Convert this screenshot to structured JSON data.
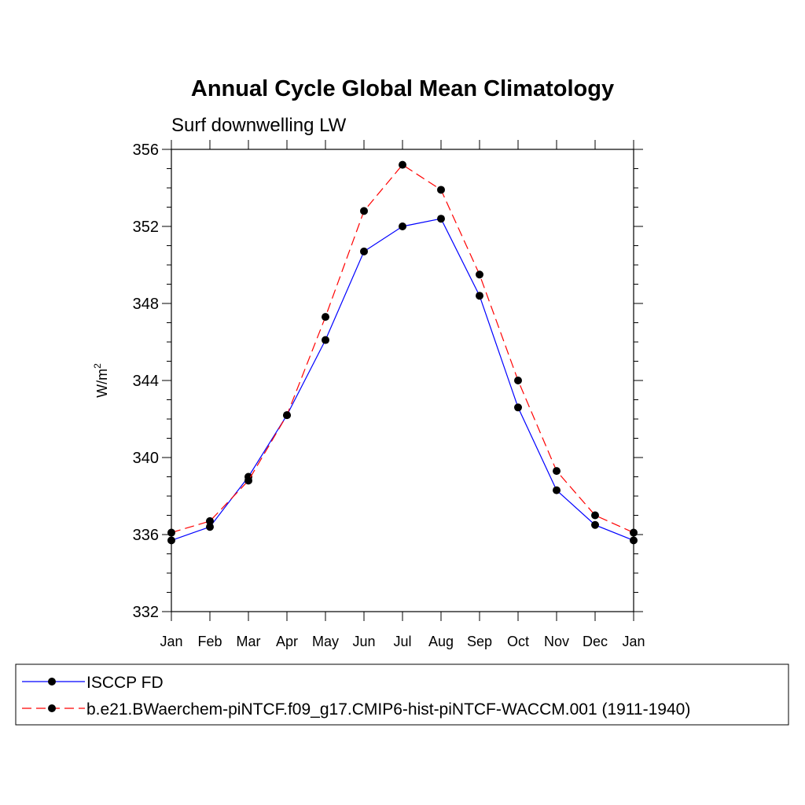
{
  "chart_data": {
    "type": "line",
    "title": "Annual Cycle Global Mean Climatology",
    "subtitle": "Surf downwelling LW",
    "ylabel": "W/m",
    "ylabel_sup": "2",
    "xlabel": "",
    "categories": [
      "Jan",
      "Feb",
      "Mar",
      "Apr",
      "May",
      "Jun",
      "Jul",
      "Aug",
      "Sep",
      "Oct",
      "Nov",
      "Dec",
      "Jan"
    ],
    "ylim": [
      332,
      356
    ],
    "yticks": [
      "332",
      "336",
      "340",
      "344",
      "348",
      "352",
      "356"
    ],
    "grid": false,
    "legend_position": "bottom",
    "series": [
      {
        "name": "ISCCP FD",
        "color": "#0000ff",
        "dash": "solid",
        "values": [
          335.7,
          336.4,
          339.0,
          342.2,
          346.1,
          350.7,
          352.0,
          352.4,
          348.4,
          342.6,
          338.3,
          336.5,
          335.7
        ]
      },
      {
        "name": "b.e21.BWaerchem-piNTCF.f09_g17.CMIP6-hist-piNTCF-WACCM.001 (1911-1940)",
        "color": "#ff0000",
        "dash": "dashed",
        "values": [
          336.1,
          336.7,
          338.8,
          342.2,
          347.3,
          352.8,
          355.2,
          353.9,
          349.5,
          344.0,
          339.3,
          337.0,
          336.1
        ]
      }
    ]
  }
}
